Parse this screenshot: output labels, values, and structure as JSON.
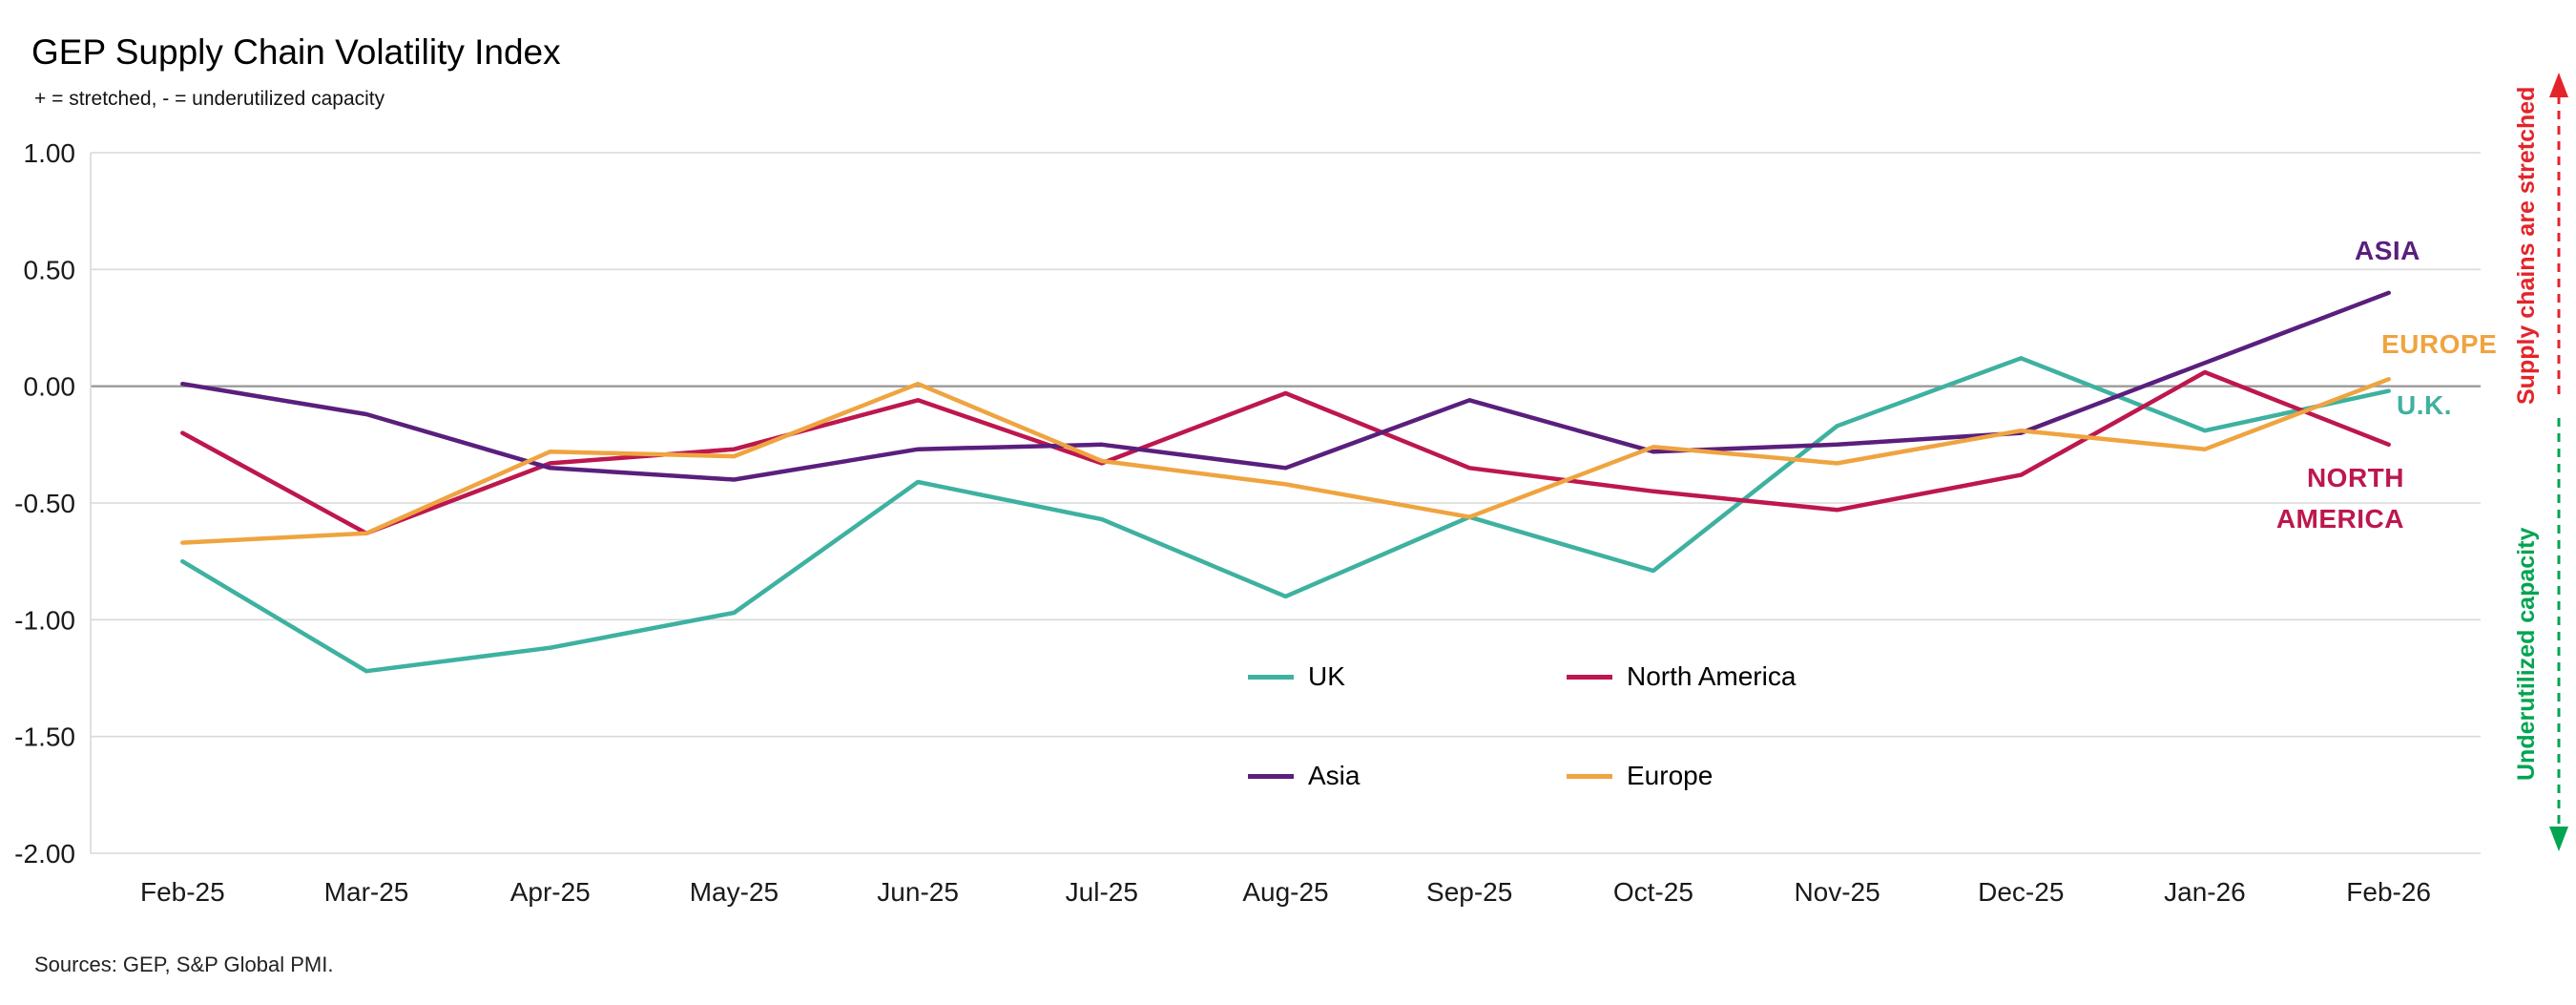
{
  "title": "GEP Supply Chain Volatility Index",
  "subtitle": "+ = stretched, - = underutilized capacity",
  "source": "Sources: GEP, S&P Global PMI.",
  "annotations": {
    "stretched": {
      "text": "Supply chains are stretched",
      "color": "#e3242b"
    },
    "underutilized": {
      "text": "Underutilized capacity",
      "color": "#00a551"
    }
  },
  "end_labels": {
    "asia": {
      "text": "ASIA",
      "color": "#5a1f7d"
    },
    "europe": {
      "text": "EUROPE",
      "color": "#efa440"
    },
    "uk": {
      "text": "U.K.",
      "color": "#3eb1a1"
    },
    "north_america": {
      "text": "NORTH AMERICA",
      "color": "#bd174d"
    }
  },
  "legend": [
    {
      "label": "UK",
      "color": "#3eb1a1"
    },
    {
      "label": "North America",
      "color": "#bd174d"
    },
    {
      "label": "Asia",
      "color": "#5a1f7d"
    },
    {
      "label": "Europe",
      "color": "#efa440"
    }
  ],
  "chart_data": {
    "type": "line",
    "title": "GEP Supply Chain Volatility Index",
    "x": [
      "Feb-25",
      "Mar-25",
      "Apr-25",
      "May-25",
      "Jun-25",
      "Jul-25",
      "Aug-25",
      "Sep-25",
      "Oct-25",
      "Nov-25",
      "Dec-25",
      "Jan-26",
      "Feb-26"
    ],
    "series": [
      {
        "name": "UK",
        "color": "#3eb1a1",
        "values": [
          -0.75,
          -1.22,
          -1.12,
          -0.97,
          -0.41,
          -0.57,
          -0.9,
          -0.56,
          -0.79,
          -0.17,
          0.12,
          -0.19,
          -0.02
        ]
      },
      {
        "name": "North America",
        "color": "#bd174d",
        "values": [
          -0.2,
          -0.63,
          -0.33,
          -0.27,
          -0.06,
          -0.33,
          -0.03,
          -0.35,
          -0.45,
          -0.53,
          -0.38,
          0.06,
          -0.25
        ]
      },
      {
        "name": "Asia",
        "color": "#5a1f7d",
        "values": [
          0.01,
          -0.12,
          -0.35,
          -0.4,
          -0.27,
          -0.25,
          -0.35,
          -0.06,
          -0.28,
          -0.25,
          -0.2,
          0.1,
          0.4
        ]
      },
      {
        "name": "Europe",
        "color": "#efa440",
        "values": [
          -0.67,
          -0.63,
          -0.28,
          -0.3,
          0.01,
          -0.32,
          -0.42,
          -0.56,
          -0.26,
          -0.33,
          -0.19,
          -0.27,
          0.03
        ]
      }
    ],
    "ylim": [
      -2.0,
      1.0
    ],
    "yticks": [
      1.0,
      0.5,
      0.0,
      -0.5,
      -1.0,
      -1.5,
      -2.0
    ],
    "grid": true,
    "zero_line": true,
    "legend_position": "inside-bottom-center"
  }
}
